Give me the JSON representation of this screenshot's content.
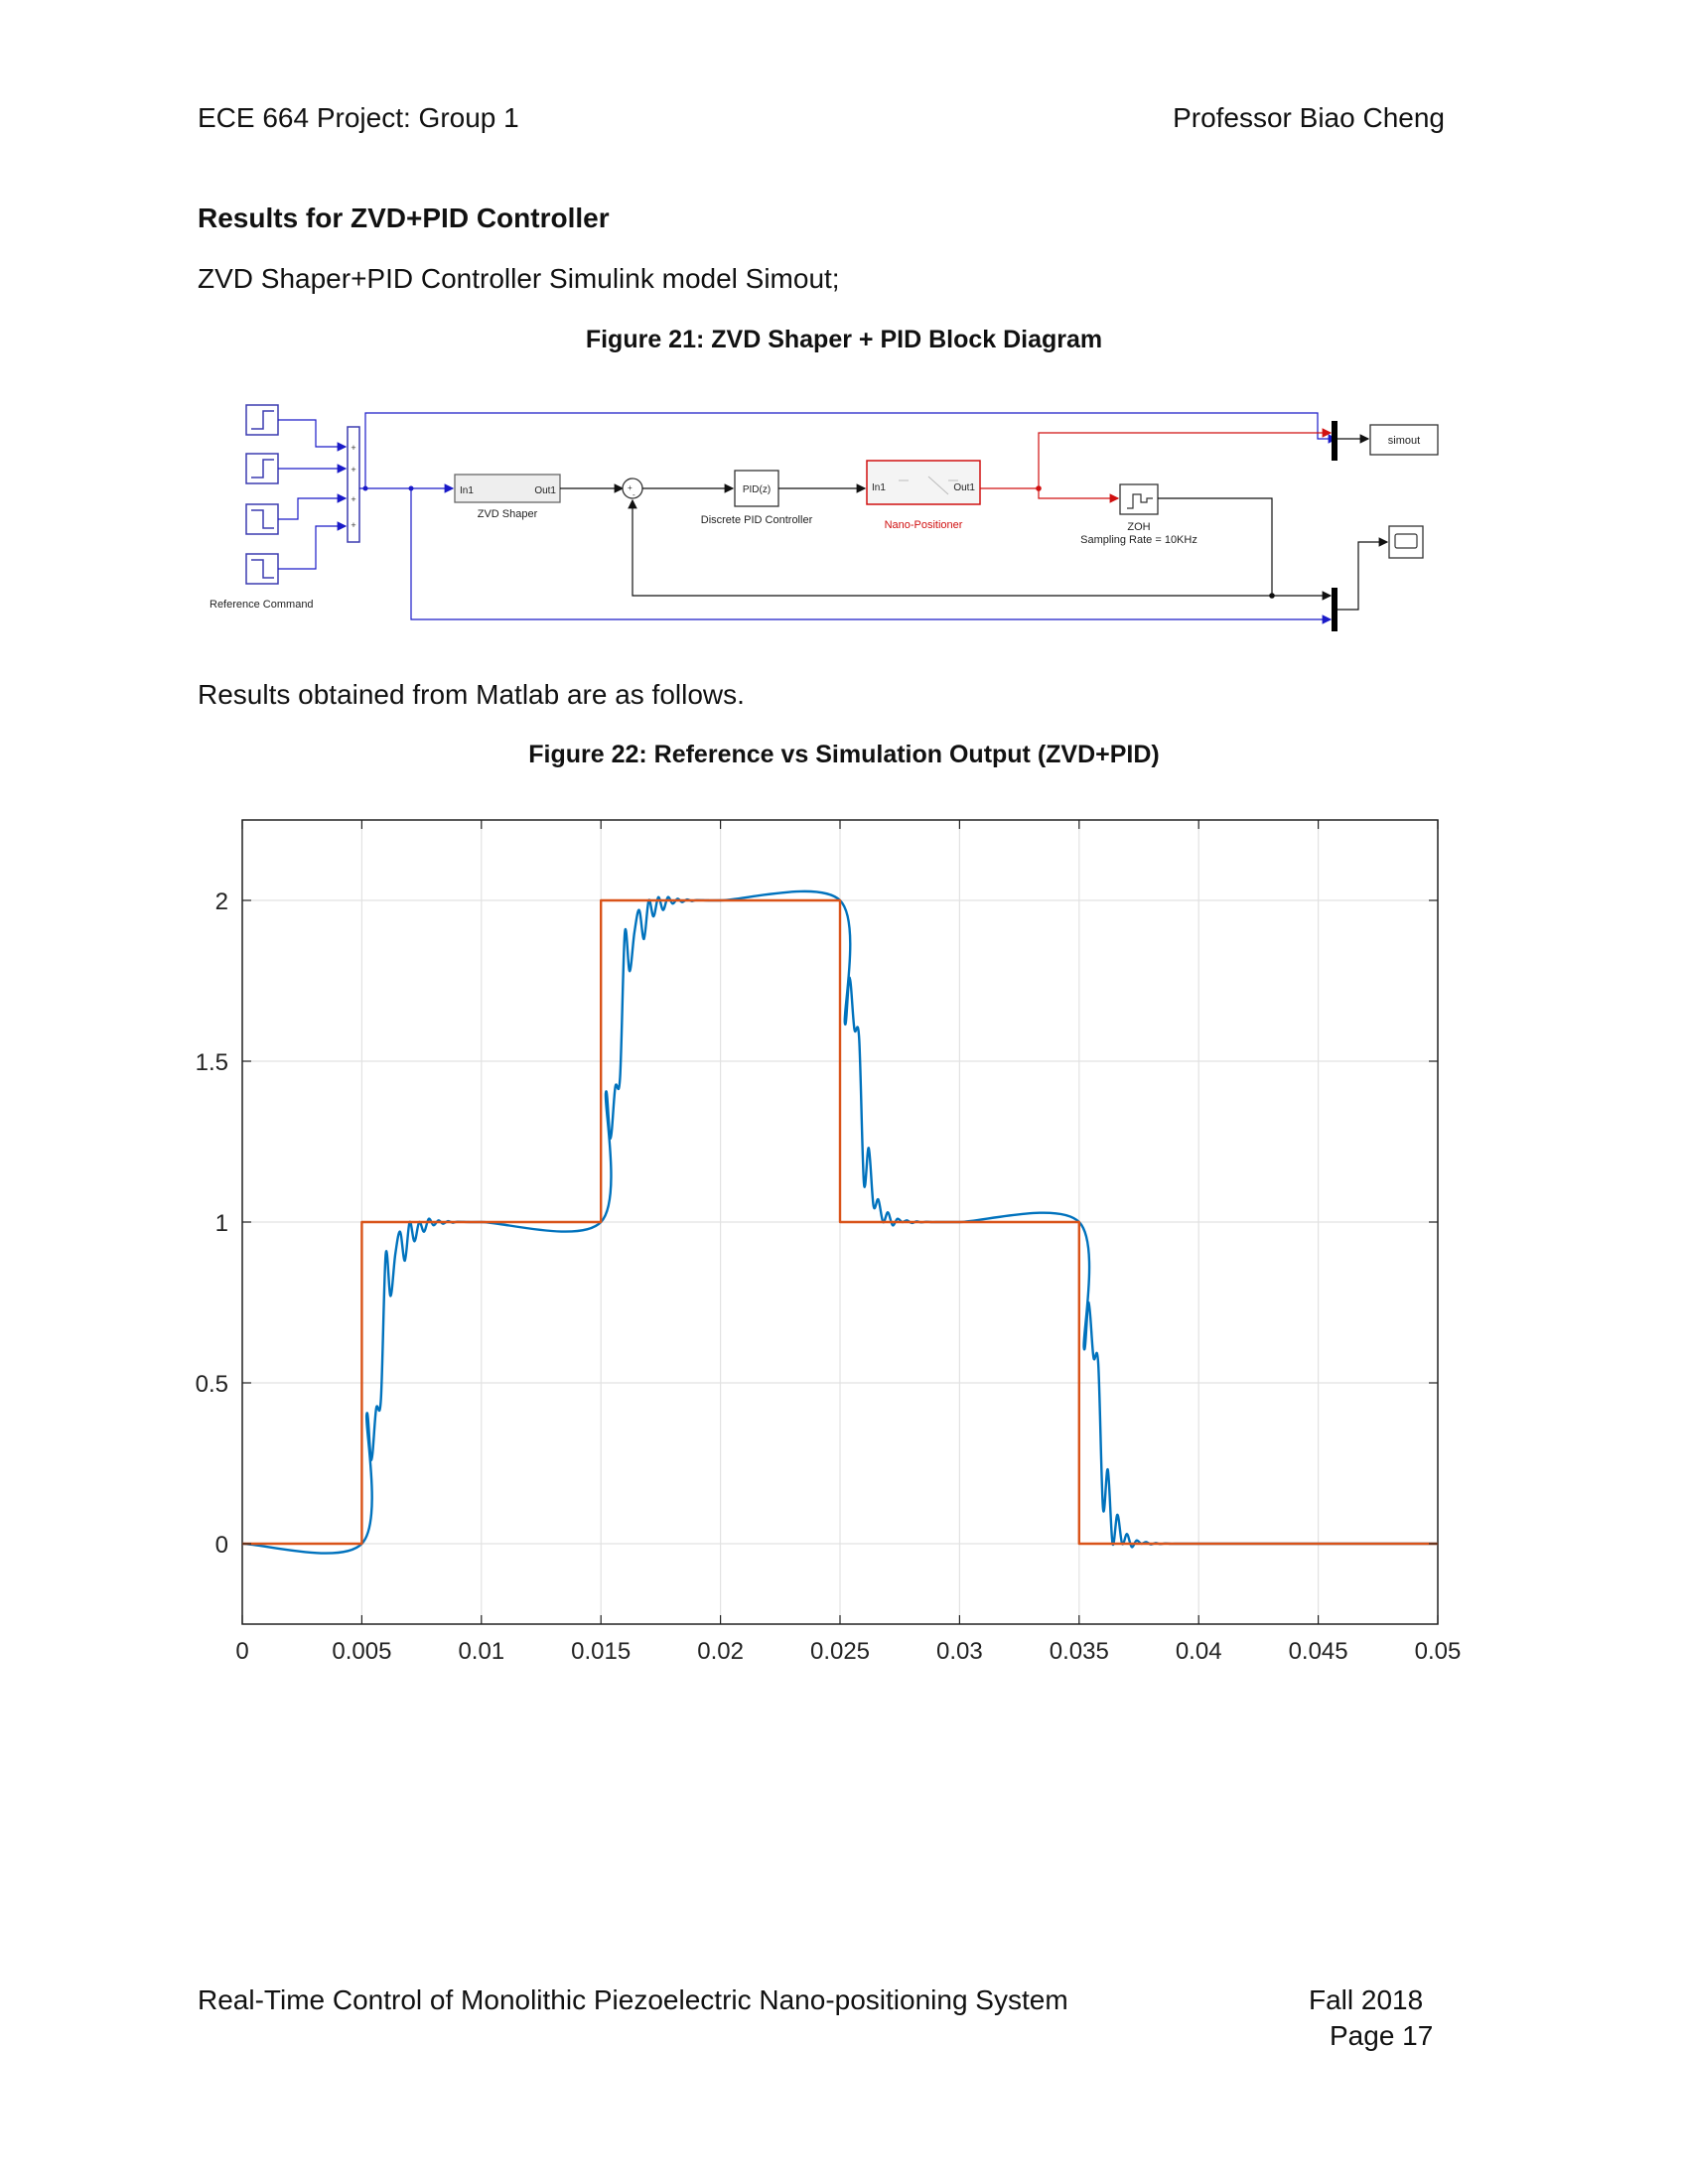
{
  "header": {
    "left": "ECE 664 Project: Group 1",
    "right": "Professor Biao Cheng"
  },
  "section_title": "Results for ZVD+PID Controller",
  "intro_text": "ZVD Shaper+PID Controller Simulink model Simout;",
  "figure21": {
    "caption": "Figure 21: ZVD Shaper + PID Block Diagram",
    "blocks": {
      "ref_label": "Reference Command",
      "zvd_in": "In1",
      "zvd_out": "Out1",
      "zvd_label": "ZVD Shaper",
      "pid_text": "PID(z)",
      "pid_label": "Discrete PID Controller",
      "nano_in": "In1",
      "nano_out": "Out1",
      "nano_label": "Nano-Positioner",
      "zoh_label": "ZOH",
      "zoh_rate": "Sampling Rate = 10KHz",
      "simout": "simout"
    }
  },
  "results_text": "Results obtained from Matlab are as follows.",
  "figure22": {
    "caption": "Figure 22: Reference vs Simulation Output (ZVD+PID)"
  },
  "chart_data": {
    "type": "line",
    "title": "",
    "xlabel": "",
    "ylabel": "",
    "xlim": [
      0,
      0.05
    ],
    "ylim": [
      -0.25,
      2.25
    ],
    "grid": true,
    "x_ticks": [
      "0",
      "0.005",
      "0.01",
      "0.015",
      "0.02",
      "0.025",
      "0.03",
      "0.035",
      "0.04",
      "0.045",
      "0.05"
    ],
    "y_ticks": [
      "0",
      "0.5",
      "1",
      "1.5",
      "2"
    ],
    "series": [
      {
        "color": "#D95319",
        "x": [
          0,
          0.005,
          0.005,
          0.015,
          0.015,
          0.025,
          0.025,
          0.035,
          0.035,
          0.05
        ],
        "y": [
          0,
          0,
          1,
          1,
          2,
          2,
          1,
          1,
          0,
          0
        ]
      },
      {
        "color": "#0072BD",
        "x": [
          0,
          0.005,
          0.0052,
          0.0054,
          0.0056,
          0.0058,
          0.006,
          0.0062,
          0.0064,
          0.0066,
          0.0068,
          0.007,
          0.0072,
          0.0074,
          0.0076,
          0.0078,
          0.008,
          0.0082,
          0.0084,
          0.0086,
          0.0088,
          0.009,
          0.0095,
          0.01,
          0.015,
          0.0152,
          0.0154,
          0.0156,
          0.0158,
          0.016,
          0.0162,
          0.0164,
          0.0166,
          0.0168,
          0.017,
          0.0172,
          0.0174,
          0.0176,
          0.0178,
          0.018,
          0.0182,
          0.0184,
          0.0186,
          0.0188,
          0.019,
          0.0195,
          0.02,
          0.025,
          0.0252,
          0.0254,
          0.0256,
          0.0258,
          0.026,
          0.0262,
          0.0264,
          0.0266,
          0.0268,
          0.027,
          0.0272,
          0.0274,
          0.0276,
          0.0278,
          0.028,
          0.0282,
          0.0284,
          0.0286,
          0.0288,
          0.029,
          0.0295,
          0.03,
          0.035,
          0.0352,
          0.0354,
          0.0356,
          0.0358,
          0.036,
          0.0362,
          0.0364,
          0.0366,
          0.0368,
          0.037,
          0.0372,
          0.0374,
          0.0376,
          0.0378,
          0.038,
          0.0382,
          0.0384,
          0.0386,
          0.0388,
          0.039,
          0.0395,
          0.04,
          0.05
        ],
        "y": [
          0,
          0,
          0.4,
          0.26,
          0.42,
          0.45,
          0.9,
          0.77,
          0.9,
          0.97,
          0.88,
          1.0,
          0.94,
          1.0,
          0.97,
          1.01,
          0.99,
          1.005,
          0.995,
          1.003,
          0.998,
          1.001,
          1.0,
          1.0,
          1.0,
          1.4,
          1.26,
          1.42,
          1.45,
          1.9,
          1.78,
          1.9,
          1.97,
          1.88,
          2.0,
          1.95,
          2.01,
          1.97,
          2.01,
          1.99,
          2.005,
          1.995,
          2.003,
          1.998,
          2.001,
          2.0,
          2.0,
          2.0,
          1.62,
          1.76,
          1.6,
          1.57,
          1.12,
          1.23,
          1.05,
          1.07,
          1.0,
          1.03,
          0.99,
          1.01,
          1.0,
          1.005,
          0.997,
          1.002,
          0.999,
          1.001,
          1.0,
          1.0,
          1.0,
          1.0,
          1.0,
          0.61,
          0.75,
          0.58,
          0.56,
          0.11,
          0.23,
          0.0,
          0.09,
          0.0,
          0.03,
          -0.01,
          0.01,
          0.0,
          0.005,
          -0.002,
          0.002,
          -0.001,
          0.001,
          0.0,
          0.0,
          0.0,
          0.0,
          0.0
        ]
      }
    ]
  },
  "footer": {
    "left": "Real-Time Control of Monolithic Piezoelectric Nano-positioning System",
    "right": "Fall 2018",
    "page": "Page 17"
  }
}
